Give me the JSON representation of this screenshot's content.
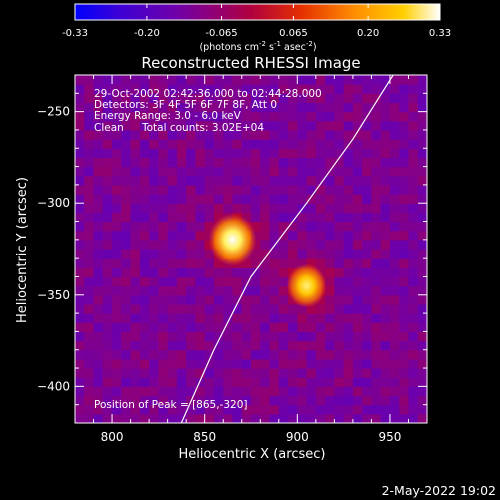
{
  "chart_data": {
    "type": "heatmap",
    "title": "Reconstructed RHESSI Image",
    "xlabel": "Heliocentric X (arcsec)",
    "ylabel": "Heliocentric Y (arcsec)",
    "xlim": [
      780,
      970
    ],
    "ylim": [
      -420,
      -230
    ],
    "xticks": [
      800,
      850,
      900,
      950
    ],
    "yticks": [
      -250,
      -300,
      -350,
      -400
    ],
    "annotations": {
      "time_range": "29-Oct-2002 02:42:36.000 to 02:44:28.000",
      "detectors": "Detectors: 3F 4F 5F 6F 7F 8F, Att 0",
      "energy_range": "Energy Range: 3.0 - 6.0 keV",
      "clean_label": "Clean",
      "total_counts": "Total counts: 3.02E+04",
      "peak_position": "Position of Peak = [865,-320]"
    },
    "colorbar": {
      "range": [
        -0.33,
        0.33
      ],
      "ticks": [
        "-0.33",
        "-0.20",
        "-0.065",
        "0.065",
        "0.20",
        "0.33"
      ],
      "tick_values": [
        -0.33,
        -0.2,
        -0.065,
        0.065,
        0.2,
        0.33
      ],
      "units_parts": [
        "(photons cm",
        "-2",
        " s",
        "-1",
        " asec",
        "-2",
        ")"
      ],
      "colors": [
        "#0000ff",
        "#3c00d6",
        "#7000a8",
        "#b00040",
        "#e43000",
        "#ff8a00",
        "#ffd000",
        "#ffffff"
      ]
    },
    "peaks": [
      {
        "x": 865,
        "y": -320,
        "value": 0.33
      },
      {
        "x": 905,
        "y": -345,
        "value": 0.27
      }
    ],
    "limb_curve": [
      [
        833,
        -430
      ],
      [
        855,
        -380
      ],
      [
        875,
        -340
      ],
      [
        905,
        -300
      ],
      [
        930,
        -265
      ],
      [
        953,
        -228
      ]
    ],
    "grid": false
  },
  "footer_date": "2-May-2022 19:02"
}
